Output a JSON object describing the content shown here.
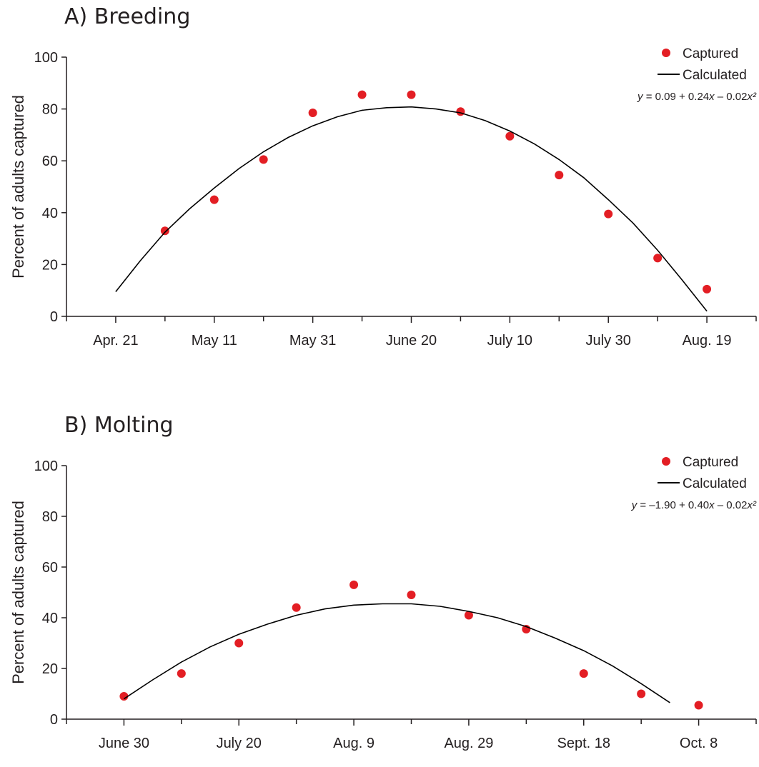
{
  "chart_data": [
    {
      "type": "scatter",
      "panel_title": "A) Breeding",
      "ylabel": "Percent of adults captured",
      "ylim": [
        0,
        100
      ],
      "yticks": [
        0,
        20,
        40,
        60,
        80,
        100
      ],
      "xtick_labels": [
        "Apr. 21",
        "May 11",
        "May 31",
        "June 20",
        "July 10",
        "July 30",
        "Aug. 19"
      ],
      "xlim": [
        -1,
        13
      ],
      "legend": {
        "position": "top-right",
        "marker_label": "Captured",
        "line_label": "Calculated"
      },
      "equation": {
        "prefix": "y",
        "body": " = 0.09 + 0.24",
        "x1": "x",
        "mid": " – 0.02",
        "x2": "x²"
      },
      "series": [
        {
          "name": "Captured",
          "kind": "points",
          "color": "#e31e24",
          "x": [
            1,
            2,
            3,
            4,
            5,
            6,
            7,
            8,
            9,
            10,
            11,
            12
          ],
          "y": [
            33,
            45,
            60.5,
            78.5,
            85.5,
            85.5,
            79,
            69.5,
            54.5,
            39.5,
            22.5,
            10.5
          ]
        },
        {
          "name": "Calculated",
          "kind": "line",
          "color": "#000000",
          "x": [
            0,
            0.5,
            1,
            1.5,
            2,
            2.5,
            3,
            3.5,
            4,
            4.5,
            5,
            5.5,
            6,
            6.5,
            7,
            7.5,
            8,
            8.5,
            9,
            9.5,
            10,
            10.5,
            11,
            11.5,
            12
          ],
          "y": [
            9.5,
            21.5,
            32.5,
            41.5,
            49.5,
            57,
            63.5,
            69,
            73.5,
            77,
            79.5,
            80.5,
            80.8,
            80,
            78.5,
            75.5,
            71.5,
            66.5,
            60.5,
            53.5,
            45,
            36,
            25.5,
            14,
            2
          ]
        }
      ]
    },
    {
      "type": "scatter",
      "panel_title": "B) Molting",
      "ylabel": "Percent of adults captured",
      "ylim": [
        0,
        100
      ],
      "yticks": [
        0,
        20,
        40,
        60,
        80,
        100
      ],
      "xtick_labels": [
        "June 30",
        "July 20",
        "Aug. 9",
        "Aug. 29",
        "Sept. 18",
        "Oct. 8"
      ],
      "xlim": [
        -1,
        11
      ],
      "legend": {
        "position": "top-right",
        "marker_label": "Captured",
        "line_label": "Calculated"
      },
      "equation": {
        "prefix": "y",
        "body": " = –1.90 + 0.40",
        "x1": "x",
        "mid": " – 0.02",
        "x2": "x²"
      },
      "series": [
        {
          "name": "Captured",
          "kind": "points",
          "color": "#e31e24",
          "x": [
            0,
            1,
            2,
            3,
            4,
            5,
            6,
            7,
            8,
            9,
            10
          ],
          "y": [
            9,
            18,
            30,
            44,
            53,
            49,
            41,
            35.5,
            18,
            10,
            5.5
          ]
        },
        {
          "name": "Calculated",
          "kind": "line",
          "color": "#000000",
          "x": [
            0,
            0.5,
            1,
            1.5,
            2,
            2.5,
            3,
            3.5,
            4,
            4.5,
            5,
            5.5,
            6,
            6.5,
            7,
            7.5,
            8,
            8.5,
            9,
            9.5
          ],
          "y": [
            8,
            15.5,
            22.5,
            28.5,
            33.5,
            37.5,
            41,
            43.5,
            45,
            45.5,
            45.5,
            44.5,
            42.5,
            40,
            36.5,
            32,
            27,
            21,
            14,
            6.5
          ]
        }
      ]
    }
  ]
}
